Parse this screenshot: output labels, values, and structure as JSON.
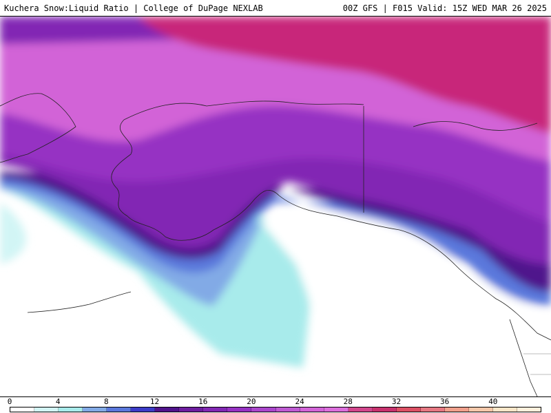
{
  "header": {
    "title": "Kuchera Snow:Liquid Ratio | College of DuPage NEXLAB",
    "valid": "00Z GFS | F015 Valid: 15Z WED MAR 26 2025"
  },
  "colorbar": {
    "min": 0,
    "max": 44,
    "tick_labels": [
      "0",
      "4",
      "8",
      "12",
      "16",
      "20",
      "24",
      "28",
      "32",
      "36",
      "40"
    ],
    "tick_values": [
      0,
      4,
      8,
      12,
      16,
      20,
      24,
      28,
      32,
      36,
      40
    ],
    "colors": [
      "#ffffff",
      "#d2f5f5",
      "#a8ebeb",
      "#82aae6",
      "#5a78dc",
      "#3c3cc8",
      "#50148c",
      "#6e1ea0",
      "#8228b4",
      "#9632c3",
      "#aa46cc",
      "#be5ad2",
      "#d264d7",
      "#dc6edc",
      "#d2468c",
      "#c8326e",
      "#dc5064",
      "#e67882",
      "#f0a08c",
      "#f5c8aa",
      "#fae6c8",
      "#fff0dc"
    ]
  },
  "map": {
    "colors": {
      "ocean_ratio_zero": "#ffffff",
      "low": "#a8ebeb",
      "mid_low": "#82aae6",
      "mid": "#3c3cc8",
      "purple": "#6e1ea0",
      "violet": "#9632c3",
      "orchid": "#d264d7",
      "magenta": "#c8287a",
      "border": "#222222"
    }
  }
}
